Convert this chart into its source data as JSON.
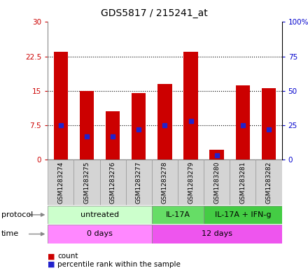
{
  "title": "GDS5817 / 215241_at",
  "samples": [
    "GSM1283274",
    "GSM1283275",
    "GSM1283276",
    "GSM1283277",
    "GSM1283278",
    "GSM1283279",
    "GSM1283280",
    "GSM1283281",
    "GSM1283282"
  ],
  "counts": [
    23.5,
    15.0,
    10.5,
    14.5,
    16.5,
    23.5,
    2.2,
    16.2,
    15.5
  ],
  "percentiles": [
    25.0,
    17.0,
    17.0,
    22.0,
    25.0,
    28.0,
    3.0,
    25.0,
    22.0
  ],
  "ylim_left": [
    0,
    30
  ],
  "ylim_right": [
    0,
    100
  ],
  "yticks_left": [
    0,
    7.5,
    15,
    22.5,
    30
  ],
  "yticks_right": [
    0,
    25,
    50,
    75,
    100
  ],
  "ytick_labels_left": [
    "0",
    "7.5",
    "15",
    "22.5",
    "30"
  ],
  "ytick_labels_right": [
    "0",
    "25",
    "50",
    "75",
    "100%"
  ],
  "bar_color": "#cc0000",
  "dot_color": "#2222cc",
  "grid_color": "#000000",
  "protocol_groups": [
    {
      "label": "untreated",
      "start": 0,
      "end": 4,
      "color": "#ccffcc"
    },
    {
      "label": "IL-17A",
      "start": 4,
      "end": 6,
      "color": "#66dd66"
    },
    {
      "label": "IL-17A + IFN-g",
      "start": 6,
      "end": 9,
      "color": "#44cc44"
    }
  ],
  "time_groups": [
    {
      "label": "0 days",
      "start": 0,
      "end": 4,
      "color": "#ff88ff"
    },
    {
      "label": "12 days",
      "start": 4,
      "end": 9,
      "color": "#ee55ee"
    }
  ],
  "tick_label_color_left": "#cc0000",
  "tick_label_color_right": "#0000cc",
  "legend_items": [
    "count",
    "percentile rank within the sample"
  ],
  "title_fontsize": 10,
  "axis_fontsize": 7.5,
  "sample_fontsize": 6.5,
  "row_fontsize": 8
}
